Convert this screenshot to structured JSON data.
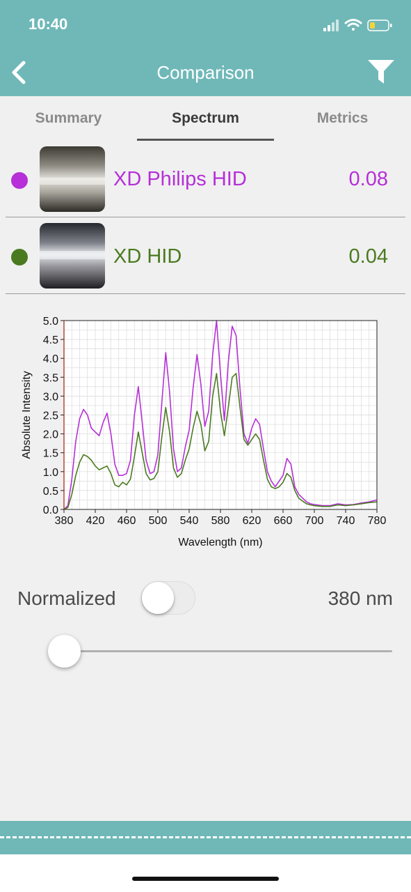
{
  "status_bar": {
    "time": "10:40"
  },
  "nav": {
    "title": "Comparison",
    "back_icon": "chevron-left-icon",
    "filter_icon": "filter-icon"
  },
  "tabs": [
    {
      "label": "Summary",
      "active": false
    },
    {
      "label": "Spectrum",
      "active": true
    },
    {
      "label": "Metrics",
      "active": false
    }
  ],
  "items": [
    {
      "name": "XD Philips HID",
      "value": "0.08",
      "color": "#b62fd8"
    },
    {
      "name": "XD HID",
      "value": "0.04",
      "color": "#4a7a1f"
    }
  ],
  "chart_data": {
    "type": "line",
    "xlabel": "Wavelength (nm)",
    "ylabel": "Absolute Intensity",
    "xlim": [
      380,
      780
    ],
    "ylim": [
      0,
      5.0
    ],
    "x_ticks": [
      "380",
      "420",
      "460",
      "500",
      "540",
      "580",
      "620",
      "660",
      "700",
      "740",
      "780"
    ],
    "y_ticks": [
      "0.0",
      "0.5",
      "1.0",
      "1.5",
      "2.0",
      "2.5",
      "3.0",
      "3.5",
      "4.0",
      "4.5",
      "5.0"
    ],
    "grid": true,
    "series": [
      {
        "name": "XD Philips HID",
        "color": "#b62fd8",
        "x": [
          380,
          385,
          390,
          395,
          400,
          405,
          410,
          415,
          420,
          425,
          430,
          435,
          440,
          445,
          450,
          455,
          460,
          465,
          470,
          475,
          480,
          485,
          490,
          495,
          500,
          505,
          510,
          515,
          520,
          525,
          530,
          535,
          540,
          545,
          550,
          555,
          560,
          565,
          570,
          575,
          580,
          585,
          590,
          595,
          600,
          605,
          610,
          615,
          620,
          625,
          630,
          635,
          640,
          645,
          650,
          655,
          660,
          665,
          670,
          675,
          680,
          685,
          690,
          695,
          700,
          710,
          720,
          730,
          740,
          750,
          760,
          770,
          780
        ],
        "y": [
          0.0,
          0.1,
          0.8,
          1.8,
          2.4,
          2.65,
          2.5,
          2.15,
          2.05,
          1.95,
          2.3,
          2.55,
          2.0,
          1.2,
          0.9,
          0.9,
          0.95,
          1.3,
          2.5,
          3.25,
          2.3,
          1.3,
          0.95,
          1.0,
          1.45,
          2.8,
          4.15,
          3.1,
          1.6,
          1.0,
          1.1,
          1.65,
          2.1,
          3.2,
          4.1,
          3.3,
          2.2,
          2.6,
          4.1,
          5.0,
          3.6,
          2.35,
          3.9,
          4.85,
          4.6,
          3.2,
          2.0,
          1.75,
          2.15,
          2.4,
          2.25,
          1.6,
          1.0,
          0.75,
          0.6,
          0.75,
          0.9,
          1.35,
          1.2,
          0.6,
          0.4,
          0.3,
          0.2,
          0.15,
          0.13,
          0.1,
          0.1,
          0.15,
          0.12,
          0.13,
          0.17,
          0.2,
          0.25
        ]
      },
      {
        "name": "XD HID",
        "color": "#4a7a1f",
        "x": [
          380,
          385,
          390,
          395,
          400,
          405,
          410,
          415,
          420,
          425,
          430,
          435,
          440,
          445,
          450,
          455,
          460,
          465,
          470,
          475,
          480,
          485,
          490,
          495,
          500,
          505,
          510,
          515,
          520,
          525,
          530,
          535,
          540,
          545,
          550,
          555,
          560,
          565,
          570,
          575,
          580,
          585,
          590,
          595,
          600,
          605,
          610,
          615,
          620,
          625,
          630,
          635,
          640,
          645,
          650,
          655,
          660,
          665,
          670,
          675,
          680,
          685,
          690,
          695,
          700,
          710,
          720,
          730,
          740,
          750,
          760,
          770,
          780
        ],
        "y": [
          0.0,
          0.05,
          0.4,
          0.9,
          1.25,
          1.45,
          1.4,
          1.3,
          1.15,
          1.05,
          1.1,
          1.15,
          0.95,
          0.65,
          0.6,
          0.72,
          0.65,
          0.8,
          1.4,
          2.05,
          1.5,
          0.95,
          0.78,
          0.82,
          1.0,
          1.9,
          2.7,
          2.05,
          1.1,
          0.85,
          0.95,
          1.3,
          1.6,
          2.15,
          2.6,
          2.25,
          1.55,
          1.8,
          3.0,
          3.6,
          2.6,
          1.95,
          2.7,
          3.5,
          3.6,
          2.7,
          1.85,
          1.7,
          1.85,
          2.0,
          1.85,
          1.3,
          0.8,
          0.6,
          0.55,
          0.6,
          0.72,
          0.95,
          0.85,
          0.5,
          0.3,
          0.22,
          0.15,
          0.12,
          0.1,
          0.08,
          0.08,
          0.12,
          0.1,
          0.12,
          0.15,
          0.18,
          0.2
        ]
      }
    ]
  },
  "controls": {
    "normalized_label": "Normalized",
    "normalized_on": false,
    "wavelength_value": "380 nm",
    "slider_fraction": 0.0
  }
}
